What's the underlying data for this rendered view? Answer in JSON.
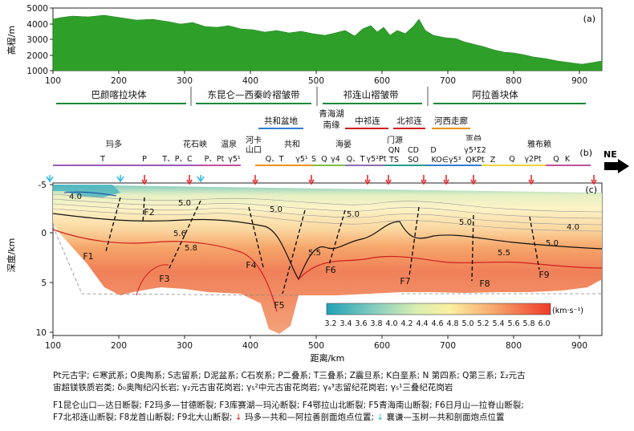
{
  "panel_a": {
    "label": "(a)",
    "ylabel": "高程/m",
    "yticks": [
      "5000",
      "4000",
      "3000",
      "2000",
      "1000"
    ],
    "xticks": [
      "100",
      "200",
      "300",
      "400",
      "500",
      "600",
      "700",
      "800",
      "900"
    ],
    "fill_color": "#2ea02a"
  },
  "blocks": [
    {
      "name": "巴颜喀拉块体",
      "color": "#1b8a3a"
    },
    {
      "name": "东昆仑—西秦岭褶皱带",
      "color": "#1b8a3a"
    },
    {
      "name": "祁连山褶皱带",
      "color": "#1b8a3a"
    },
    {
      "name": "阿拉善块体",
      "color": "#1b8a3a"
    }
  ],
  "subunits": [
    {
      "name": "共和盆地",
      "color": "#2f7fd1"
    },
    {
      "name": "青海湖",
      "color": "#111111"
    },
    {
      "name": "南缘",
      "color": "#111111"
    },
    {
      "name": "中祁连",
      "color": "#d11f1f"
    },
    {
      "name": "北祁连",
      "color": "#d11f1f"
    },
    {
      "name": "河西走廊",
      "color": "#e8931a"
    }
  ],
  "panel_b": {
    "label": "(b)",
    "direction": "NE",
    "places": [
      "玛多",
      "花石峡",
      "温泉",
      "河卡",
      "山口",
      "共和",
      "海晏",
      "门源",
      "金昌",
      "雅布赖"
    ],
    "strata": [
      "T",
      "P",
      "T、P、C",
      "P、Pt",
      "γ5¹",
      "Q、T",
      "γ5¹",
      "S",
      "Q",
      "γ4",
      "Q、T",
      "γ5²Pt",
      "QN",
      "TS",
      "CD",
      "SO",
      "D",
      "KO∈γ5³",
      "γ5³Σ2",
      "QKPt",
      "Z",
      "Q",
      "γ2Pt",
      "Q",
      "K"
    ]
  },
  "panel_c": {
    "label": "(c)",
    "ylabel": "深度/km",
    "xlabel": "距离/km",
    "yticks": [
      "-5",
      "0",
      "5",
      "10"
    ],
    "xticks": [
      "100",
      "200",
      "300",
      "400",
      "500",
      "600",
      "700",
      "800",
      "900"
    ],
    "contour_labels": [
      "4.0",
      "5.0",
      "5.6",
      "5.8",
      "5.0",
      "5.0",
      "5.0",
      "4.0",
      "5.0",
      "5.5",
      "5.5"
    ],
    "faults": [
      "F1",
      "F2",
      "F3",
      "F4",
      "F5",
      "F6",
      "F7",
      "F8",
      "F9"
    ],
    "colorbar_unit": "(km·s⁻¹)",
    "colorbar_ticks": [
      "3.2",
      "3.4",
      "3.6",
      "3.8",
      "4.0",
      "4.2",
      "4.4",
      "4.6",
      "4.8",
      "5.0",
      "5.2",
      "5.4",
      "5.6",
      "5.8",
      "6.0"
    ]
  },
  "legend": {
    "line1": "Pt元古宇; ∈寒武系; O奥陶系; S志留系; D泥盆系; C石炭系; P二叠系; T三叠系; Z震旦系; K白垩系; N 第四系; Q第三系; Σ₂元古",
    "line2": "宙超镁铁质岩类; δ₀奥陶纪闪长岩; γ₂元古宙花岗岩; γ₅²中元古宙花岗岩; γ₄³志留纪花岗岩; γ₅¹三叠纪花岗岩",
    "line3": "F1昆仑山口—达日断裂; F2玛多—甘德断裂; F3库赛湖—玛沁断裂; F4鄂拉山北断裂; F5青海南山断裂; F6日月山—拉脊山断裂;",
    "line4a": "F7北祁连山断裂; F8龙首山断裂; F9北大山断裂;",
    "line4b": "玛多—共和—阿拉善剖面炮点位置;",
    "line4c": "襄谦—玉树—共和剖面炮点位置"
  }
}
